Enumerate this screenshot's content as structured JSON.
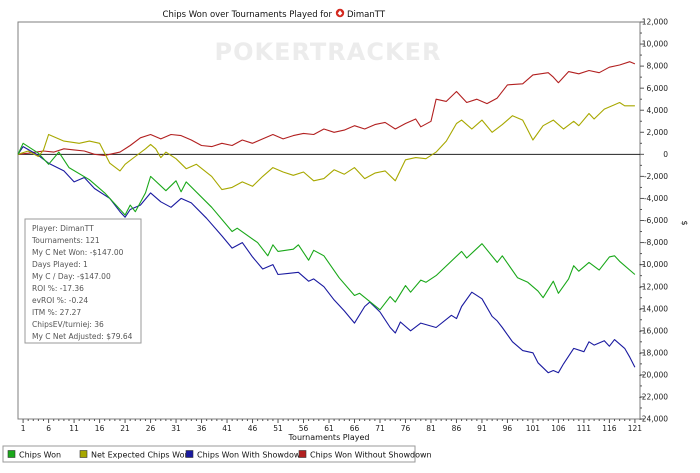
{
  "chart_data": {
    "type": "line",
    "title": "Chips Won over Tournaments Played for",
    "player_name": "DimanTT",
    "watermark": "POKERTRACKER",
    "xlabel": "Tournaments Played",
    "ylabel": "$",
    "xlim": [
      0,
      122
    ],
    "ylim": [
      -24000,
      12000
    ],
    "x_ticks": [
      1,
      6,
      11,
      16,
      21,
      26,
      31,
      36,
      41,
      46,
      51,
      56,
      61,
      66,
      71,
      76,
      81,
      86,
      91,
      96,
      101,
      106,
      111,
      116,
      121
    ],
    "y_ticks": [
      12000,
      10000,
      8000,
      6000,
      4000,
      2000,
      0,
      -2000,
      -4000,
      -6000,
      -8000,
      -10000,
      -12000,
      -14000,
      -16000,
      -18000,
      -20000,
      -22000,
      -24000
    ],
    "y_tick_labels": [
      "12,000",
      "10,000",
      "8,000",
      "6,000",
      "4,000",
      "2,000",
      "0",
      "-2,000",
      "-4,000",
      "-6,000",
      "-8,000",
      "-10,000",
      "-12,000",
      "-14,000",
      "-16,000",
      "-18,000",
      "-20,000",
      "-22,000",
      "-24,000"
    ],
    "zero_line": true,
    "legend_position": "bottom-left",
    "series": [
      {
        "name": "Chips Won",
        "color": "#1aa81a",
        "points": [
          [
            0,
            0
          ],
          [
            1,
            1000
          ],
          [
            4,
            100
          ],
          [
            6,
            -900
          ],
          [
            8,
            200
          ],
          [
            10,
            -1200
          ],
          [
            14,
            -2300
          ],
          [
            17,
            -3500
          ],
          [
            21,
            -5500
          ],
          [
            22,
            -4600
          ],
          [
            23,
            -5200
          ],
          [
            25,
            -3500
          ],
          [
            26,
            -2000
          ],
          [
            29,
            -3300
          ],
          [
            31,
            -2400
          ],
          [
            32,
            -3400
          ],
          [
            33,
            -2500
          ],
          [
            38,
            -4800
          ],
          [
            42,
            -7000
          ],
          [
            43,
            -6700
          ],
          [
            47,
            -8000
          ],
          [
            49,
            -9200
          ],
          [
            50,
            -8200
          ],
          [
            51,
            -8800
          ],
          [
            54,
            -8600
          ],
          [
            55,
            -8200
          ],
          [
            57,
            -9600
          ],
          [
            58,
            -8700
          ],
          [
            60,
            -9200
          ],
          [
            63,
            -11200
          ],
          [
            66,
            -12800
          ],
          [
            67,
            -12600
          ],
          [
            71,
            -14100
          ],
          [
            73,
            -12900
          ],
          [
            74,
            -13400
          ],
          [
            76,
            -11900
          ],
          [
            77,
            -12500
          ],
          [
            79,
            -11400
          ],
          [
            80,
            -11600
          ],
          [
            82,
            -11000
          ],
          [
            87,
            -8800
          ],
          [
            88,
            -9400
          ],
          [
            91,
            -8100
          ],
          [
            94,
            -9800
          ],
          [
            95,
            -9200
          ],
          [
            98,
            -11200
          ],
          [
            100,
            -11600
          ],
          [
            102,
            -12400
          ],
          [
            103,
            -13000
          ],
          [
            105,
            -11500
          ],
          [
            106,
            -12600
          ],
          [
            108,
            -11300
          ],
          [
            109,
            -10100
          ],
          [
            110,
            -10600
          ],
          [
            112,
            -9800
          ],
          [
            114,
            -10500
          ],
          [
            116,
            -9300
          ],
          [
            117,
            -9200
          ],
          [
            118,
            -9700
          ],
          [
            121,
            -10900
          ]
        ]
      },
      {
        "name": "Net Expected Chips Won",
        "color": "#a8a800",
        "points": [
          [
            0,
            0
          ],
          [
            2,
            300
          ],
          [
            4,
            -200
          ],
          [
            5,
            400
          ],
          [
            6,
            1800
          ],
          [
            9,
            1200
          ],
          [
            12,
            1000
          ],
          [
            14,
            1200
          ],
          [
            16,
            1000
          ],
          [
            18,
            -800
          ],
          [
            20,
            -1500
          ],
          [
            21,
            -900
          ],
          [
            23,
            -200
          ],
          [
            25,
            500
          ],
          [
            26,
            900
          ],
          [
            27,
            500
          ],
          [
            28,
            -300
          ],
          [
            29,
            200
          ],
          [
            31,
            -400
          ],
          [
            33,
            -1300
          ],
          [
            35,
            -900
          ],
          [
            38,
            -2000
          ],
          [
            40,
            -3200
          ],
          [
            42,
            -3000
          ],
          [
            44,
            -2500
          ],
          [
            46,
            -2900
          ],
          [
            48,
            -2000
          ],
          [
            50,
            -1200
          ],
          [
            52,
            -1600
          ],
          [
            54,
            -1900
          ],
          [
            56,
            -1600
          ],
          [
            58,
            -2400
          ],
          [
            60,
            -2200
          ],
          [
            62,
            -1400
          ],
          [
            64,
            -1800
          ],
          [
            66,
            -1200
          ],
          [
            68,
            -2200
          ],
          [
            70,
            -1700
          ],
          [
            72,
            -1500
          ],
          [
            74,
            -2400
          ],
          [
            76,
            -500
          ],
          [
            78,
            -300
          ],
          [
            80,
            -400
          ],
          [
            82,
            200
          ],
          [
            84,
            1200
          ],
          [
            86,
            2800
          ],
          [
            87,
            3100
          ],
          [
            89,
            2300
          ],
          [
            91,
            3100
          ],
          [
            93,
            2000
          ],
          [
            95,
            2700
          ],
          [
            97,
            3500
          ],
          [
            99,
            3100
          ],
          [
            101,
            1300
          ],
          [
            103,
            2600
          ],
          [
            105,
            3100
          ],
          [
            107,
            2300
          ],
          [
            109,
            3000
          ],
          [
            110,
            2600
          ],
          [
            112,
            3700
          ],
          [
            113,
            3200
          ],
          [
            115,
            4100
          ],
          [
            117,
            4500
          ],
          [
            118,
            4700
          ],
          [
            119,
            4400
          ],
          [
            121,
            4400
          ]
        ]
      },
      {
        "name": "Chips Won With Showdown",
        "color": "#1a1aa0",
        "points": [
          [
            0,
            0
          ],
          [
            1,
            700
          ],
          [
            4,
            -100
          ],
          [
            6,
            -800
          ],
          [
            9,
            -1500
          ],
          [
            11,
            -2500
          ],
          [
            13,
            -2100
          ],
          [
            15,
            -3100
          ],
          [
            18,
            -4000
          ],
          [
            20,
            -5200
          ],
          [
            21,
            -5700
          ],
          [
            22,
            -5000
          ],
          [
            24,
            -4600
          ],
          [
            26,
            -3500
          ],
          [
            28,
            -4300
          ],
          [
            30,
            -4800
          ],
          [
            32,
            -4000
          ],
          [
            34,
            -4400
          ],
          [
            37,
            -5800
          ],
          [
            40,
            -7400
          ],
          [
            42,
            -8500
          ],
          [
            44,
            -8000
          ],
          [
            46,
            -9300
          ],
          [
            48,
            -10400
          ],
          [
            50,
            -10000
          ],
          [
            51,
            -10900
          ],
          [
            53,
            -10800
          ],
          [
            55,
            -10700
          ],
          [
            57,
            -11500
          ],
          [
            58,
            -11300
          ],
          [
            60,
            -12000
          ],
          [
            62,
            -13200
          ],
          [
            64,
            -14200
          ],
          [
            66,
            -15300
          ],
          [
            68,
            -13800
          ],
          [
            69,
            -13400
          ],
          [
            71,
            -14300
          ],
          [
            73,
            -15700
          ],
          [
            74,
            -16200
          ],
          [
            75,
            -15200
          ],
          [
            77,
            -16000
          ],
          [
            79,
            -15300
          ],
          [
            82,
            -15700
          ],
          [
            85,
            -14600
          ],
          [
            86,
            -14900
          ],
          [
            87,
            -13800
          ],
          [
            89,
            -12500
          ],
          [
            91,
            -13100
          ],
          [
            93,
            -14700
          ],
          [
            94,
            -15100
          ],
          [
            95,
            -15700
          ],
          [
            97,
            -17000
          ],
          [
            99,
            -17800
          ],
          [
            101,
            -18000
          ],
          [
            102,
            -18900
          ],
          [
            104,
            -19800
          ],
          [
            105,
            -19600
          ],
          [
            106,
            -19800
          ],
          [
            107,
            -19000
          ],
          [
            109,
            -17600
          ],
          [
            111,
            -17900
          ],
          [
            112,
            -17000
          ],
          [
            113,
            -17300
          ],
          [
            115,
            -16900
          ],
          [
            116,
            -17400
          ],
          [
            117,
            -16800
          ],
          [
            119,
            -17600
          ],
          [
            120,
            -18400
          ],
          [
            121,
            -19300
          ]
        ]
      },
      {
        "name": "Chips Won Without Showdown",
        "color": "#b22020",
        "points": [
          [
            0,
            0
          ],
          [
            2,
            100
          ],
          [
            5,
            300
          ],
          [
            7,
            200
          ],
          [
            9,
            500
          ],
          [
            11,
            400
          ],
          [
            13,
            300
          ],
          [
            15,
            0
          ],
          [
            17,
            -100
          ],
          [
            20,
            200
          ],
          [
            22,
            800
          ],
          [
            24,
            1500
          ],
          [
            26,
            1800
          ],
          [
            28,
            1400
          ],
          [
            30,
            1800
          ],
          [
            32,
            1700
          ],
          [
            34,
            1300
          ],
          [
            36,
            800
          ],
          [
            38,
            700
          ],
          [
            40,
            1000
          ],
          [
            42,
            800
          ],
          [
            44,
            1300
          ],
          [
            46,
            1000
          ],
          [
            48,
            1400
          ],
          [
            50,
            1800
          ],
          [
            52,
            1400
          ],
          [
            54,
            1700
          ],
          [
            56,
            1900
          ],
          [
            58,
            1800
          ],
          [
            60,
            2300
          ],
          [
            62,
            2000
          ],
          [
            64,
            2200
          ],
          [
            66,
            2600
          ],
          [
            68,
            2300
          ],
          [
            70,
            2700
          ],
          [
            72,
            2900
          ],
          [
            74,
            2300
          ],
          [
            76,
            2800
          ],
          [
            78,
            3200
          ],
          [
            79,
            2500
          ],
          [
            81,
            3000
          ],
          [
            82,
            5000
          ],
          [
            84,
            4800
          ],
          [
            86,
            5700
          ],
          [
            88,
            4700
          ],
          [
            90,
            5000
          ],
          [
            92,
            4600
          ],
          [
            94,
            5100
          ],
          [
            96,
            6300
          ],
          [
            99,
            6400
          ],
          [
            101,
            7200
          ],
          [
            104,
            7400
          ],
          [
            105,
            7000
          ],
          [
            106,
            6500
          ],
          [
            108,
            7500
          ],
          [
            110,
            7300
          ],
          [
            112,
            7600
          ],
          [
            114,
            7400
          ],
          [
            116,
            7900
          ],
          [
            118,
            8100
          ],
          [
            120,
            8400
          ],
          [
            121,
            8200
          ]
        ]
      }
    ]
  },
  "info_box": {
    "lines": [
      "Player: DimanTT",
      "Tournaments: 121",
      "My C Net Won: -$147.00",
      "Days Played: 1",
      "My C / Day: -$147.00",
      "ROI %: -17.36",
      "evROI %: -0.24",
      "ITM %: 27.27",
      "ChipsEV/turniej: 36",
      "My C Net Adjusted: $79.64"
    ]
  },
  "legend": {
    "items": [
      "Chips Won",
      "Net Expected Chips Won",
      "Chips Won With Showdown",
      "Chips Won Without Showdown"
    ]
  },
  "colors": {
    "frame": "#7f7f7f",
    "grid": "#d0d0d0",
    "player_icon": "#d42a20"
  }
}
